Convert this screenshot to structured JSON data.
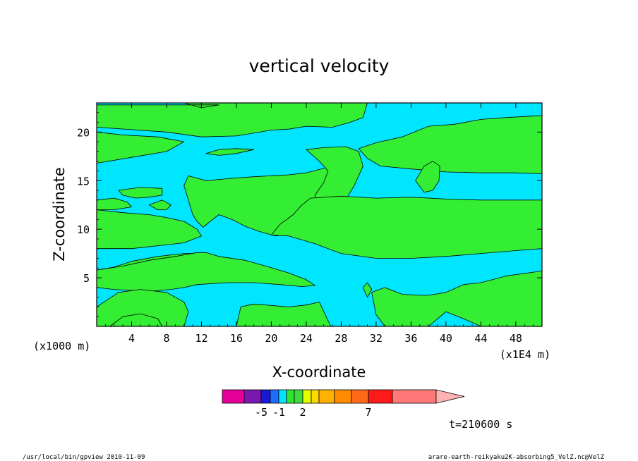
{
  "chart_data": {
    "type": "heatmap",
    "title": "vertical velocity",
    "xlabel": "X-coordinate",
    "ylabel": "Z-coordinate",
    "x_unit": "(x1000 m)",
    "x_scale_note": "(x1E4 m)",
    "x_ticks": [
      4,
      8,
      12,
      16,
      20,
      24,
      28,
      32,
      36,
      40,
      44,
      48
    ],
    "y_ticks": [
      5,
      10,
      15,
      20
    ],
    "xlim": [
      0,
      51
    ],
    "ylim": [
      0,
      23
    ],
    "colorbar": {
      "colors": [
        "#e60099",
        "#7a18b0",
        "#1a1ad6",
        "#1f6dff",
        "#00e5ff",
        "#2ee62e",
        "#3ddc3d",
        "#e6ff00",
        "#ffd800",
        "#ffb000",
        "#ff8c00",
        "#ff6a1a",
        "#ff1a1a",
        "#ff7878",
        "#ffb2b2"
      ],
      "labels": [
        {
          "text": "-5",
          "index": 2
        },
        {
          "text": "-1",
          "index": 4
        },
        {
          "text": "2",
          "index": 7
        },
        {
          "text": "7",
          "index": 12
        }
      ]
    },
    "fill_colors": {
      "low": "#00e6ff",
      "high": "#33ee33"
    },
    "regions_high": [
      [
        [
          0,
          20.5
        ],
        [
          8,
          20
        ],
        [
          12,
          19.5
        ],
        [
          16,
          19.6
        ],
        [
          20,
          20.2
        ],
        [
          22,
          20.3
        ],
        [
          24,
          20.6
        ],
        [
          27,
          20.5
        ],
        [
          29,
          21
        ],
        [
          30.5,
          21.5
        ],
        [
          31,
          23
        ],
        [
          10,
          23
        ],
        [
          12,
          22.5
        ],
        [
          14,
          22.8
        ],
        [
          0,
          22.8
        ]
      ],
      [
        [
          0,
          16.8
        ],
        [
          4,
          17.4
        ],
        [
          8,
          18
        ],
        [
          10,
          19
        ],
        [
          7,
          19.5
        ],
        [
          3,
          19.7
        ],
        [
          0,
          20
        ]
      ],
      [
        [
          10.5,
          15.5
        ],
        [
          12.5,
          15
        ],
        [
          15,
          15.2
        ],
        [
          18,
          15.4
        ],
        [
          22,
          15.6
        ],
        [
          24,
          15.8
        ],
        [
          27,
          16.5
        ],
        [
          29,
          17
        ],
        [
          29.5,
          16
        ],
        [
          28.5,
          14
        ],
        [
          27.8,
          13
        ],
        [
          27,
          12
        ],
        [
          26,
          11
        ],
        [
          25,
          10.5
        ],
        [
          23.5,
          10
        ],
        [
          22,
          9.5
        ],
        [
          20.5,
          9.3
        ],
        [
          18.5,
          9.8
        ],
        [
          17,
          10.3
        ],
        [
          15.5,
          11
        ],
        [
          14,
          11.5
        ],
        [
          13,
          10.8
        ],
        [
          12.2,
          10.2
        ],
        [
          11.5,
          10.8
        ],
        [
          11,
          11.5
        ],
        [
          10.5,
          13
        ],
        [
          10,
          14.5
        ]
      ],
      [
        [
          12.5,
          17.8
        ],
        [
          14,
          18.2
        ],
        [
          16,
          18.3
        ],
        [
          18,
          18.2
        ],
        [
          16,
          17.8
        ],
        [
          14,
          17.6
        ]
      ],
      [
        [
          24,
          18.2
        ],
        [
          26,
          18.4
        ],
        [
          28.5,
          18.5
        ],
        [
          30,
          18
        ],
        [
          30.5,
          16.5
        ],
        [
          29.5,
          14.5
        ],
        [
          28.5,
          13
        ],
        [
          27.5,
          12
        ],
        [
          26,
          11.7
        ],
        [
          25,
          12.5
        ],
        [
          25,
          13.5
        ],
        [
          26,
          14.8
        ],
        [
          26.5,
          16
        ],
        [
          25.5,
          17
        ]
      ],
      [
        [
          30,
          18.3
        ],
        [
          32,
          18.9
        ],
        [
          35,
          19.5
        ],
        [
          38,
          20.6
        ],
        [
          41,
          20.8
        ],
        [
          44,
          21.3
        ],
        [
          47,
          21.5
        ],
        [
          49,
          21.6
        ],
        [
          51,
          21.7
        ],
        [
          51,
          15.7
        ],
        [
          48,
          15.8
        ],
        [
          44,
          15.8
        ],
        [
          40,
          15.9
        ],
        [
          36,
          16.2
        ],
        [
          32.5,
          16.5
        ],
        [
          31,
          17.3
        ]
      ],
      [
        [
          36.5,
          15
        ],
        [
          37.5,
          16.5
        ],
        [
          38.5,
          17
        ],
        [
          39.3,
          16.5
        ],
        [
          39.2,
          15
        ],
        [
          38.5,
          14
        ],
        [
          37.5,
          13.8
        ]
      ],
      [
        [
          0,
          12
        ],
        [
          3,
          11.7
        ],
        [
          6,
          11.5
        ],
        [
          8,
          11.2
        ],
        [
          10,
          10.8
        ],
        [
          11.5,
          10
        ],
        [
          12,
          9.3
        ],
        [
          10,
          8.6
        ],
        [
          7,
          8.3
        ],
        [
          4,
          8
        ],
        [
          0,
          8
        ]
      ],
      [
        [
          2.5,
          14
        ],
        [
          5,
          14.3
        ],
        [
          7.5,
          14.2
        ],
        [
          7.5,
          13.5
        ],
        [
          6,
          13.3
        ],
        [
          4.5,
          13.2
        ],
        [
          3,
          13.5
        ]
      ],
      [
        [
          0,
          13
        ],
        [
          2,
          13.2
        ],
        [
          3.5,
          12.8
        ],
        [
          4,
          12.3
        ],
        [
          2,
          12
        ],
        [
          0,
          12
        ]
      ],
      [
        [
          6,
          12.5
        ],
        [
          7.5,
          13
        ],
        [
          8.5,
          12.5
        ],
        [
          8,
          12
        ],
        [
          7,
          12
        ]
      ],
      [
        [
          24.5,
          13.2
        ],
        [
          28,
          13.4
        ],
        [
          32,
          13.2
        ],
        [
          36,
          13.3
        ],
        [
          40,
          13.1
        ],
        [
          44,
          13
        ],
        [
          48,
          13
        ],
        [
          51,
          13
        ],
        [
          51,
          8
        ],
        [
          48,
          7.8
        ],
        [
          44,
          7.5
        ],
        [
          40,
          7.2
        ],
        [
          36,
          7
        ],
        [
          32,
          7
        ],
        [
          28,
          7.5
        ],
        [
          25,
          8.5
        ],
        [
          22,
          9.3
        ],
        [
          20,
          9.4
        ],
        [
          21,
          10.5
        ],
        [
          22.5,
          11.5
        ],
        [
          23.5,
          12.5
        ]
      ],
      [
        [
          0,
          5.8
        ],
        [
          2,
          6.1
        ],
        [
          4,
          6.7
        ],
        [
          7,
          7.2
        ],
        [
          10,
          7.5
        ],
        [
          12,
          7.5
        ],
        [
          10,
          7
        ],
        [
          7,
          6.5
        ],
        [
          4,
          6.2
        ],
        [
          2,
          5.9
        ]
      ],
      [
        [
          0,
          5.8
        ],
        [
          3,
          6.2
        ],
        [
          6,
          6.8
        ],
        [
          9,
          7.2
        ],
        [
          11.5,
          7.6
        ],
        [
          12.5,
          7.6
        ],
        [
          14,
          7.2
        ],
        [
          17,
          6.8
        ],
        [
          19,
          6.3
        ],
        [
          22,
          5.5
        ],
        [
          24,
          4.8
        ],
        [
          25,
          4.2
        ],
        [
          23.5,
          4.1
        ],
        [
          21,
          4.3
        ],
        [
          18,
          4.5
        ],
        [
          15,
          4.5
        ],
        [
          11.5,
          4.3
        ],
        [
          10,
          4
        ],
        [
          8.5,
          3.8
        ],
        [
          6,
          3.6
        ],
        [
          4,
          3.7
        ],
        [
          2,
          3.8
        ],
        [
          0,
          4
        ]
      ],
      [
        [
          2.5,
          3.5
        ],
        [
          5,
          3.8
        ],
        [
          8,
          3.5
        ],
        [
          10,
          2.5
        ],
        [
          10.5,
          1.5
        ],
        [
          10,
          0
        ],
        [
          0,
          0
        ],
        [
          0,
          2
        ]
      ],
      [
        [
          1.5,
          0
        ],
        [
          3,
          1
        ],
        [
          5,
          1.3
        ],
        [
          7,
          0.8
        ],
        [
          7.5,
          0
        ]
      ],
      [
        [
          16,
          0
        ],
        [
          16.5,
          2
        ],
        [
          18,
          2.3
        ],
        [
          22,
          2
        ],
        [
          24,
          2.2
        ],
        [
          25.5,
          2.5
        ],
        [
          26.8,
          0
        ]
      ],
      [
        [
          30.5,
          4
        ],
        [
          31,
          4.5
        ],
        [
          31.5,
          3.8
        ],
        [
          31,
          3
        ]
      ],
      [
        [
          31.5,
          3.5
        ],
        [
          33,
          4
        ],
        [
          35,
          3.3
        ],
        [
          37,
          3.2
        ],
        [
          38,
          3.2
        ],
        [
          40,
          3.5
        ],
        [
          42,
          4.3
        ],
        [
          44,
          4.5
        ],
        [
          47,
          5.2
        ],
        [
          51,
          5.7
        ],
        [
          51,
          0
        ],
        [
          44,
          0
        ],
        [
          42,
          0.8
        ],
        [
          40,
          1.5
        ],
        [
          38,
          0
        ],
        [
          33,
          0
        ],
        [
          32,
          1.2
        ]
      ]
    ]
  },
  "info": {
    "time": "t=210600 s",
    "left_footer": "/usr/local/bin/gpview  2010-11-09",
    "right_footer": "arare-earth-reikyaku2K-absorbing5_VelZ.nc@VelZ"
  }
}
